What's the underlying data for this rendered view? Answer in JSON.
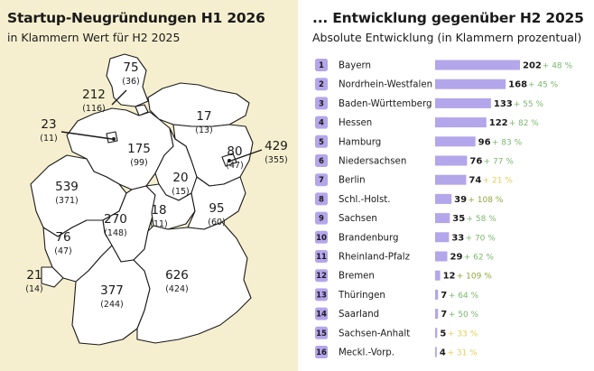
{
  "left": {
    "title": "Startup-Neugründungen H1 2026",
    "subtitle": "in Klammern Wert für H2 2025",
    "background": "#f6efcf"
  },
  "right": {
    "title": "... Entwicklung gegenüber H2 2025",
    "subtitle": "Absolute Entwicklung (in Klammern prozentual)"
  },
  "colors": {
    "bar": "#b3a6ea",
    "badge": "#b3a6ea",
    "pct_high": "#e2d05c",
    "pct_mid": "#7cb86f",
    "pct_low": "#8fa83f"
  },
  "map_labels": [
    {
      "state": "Hamburg",
      "value": "212",
      "prev": "(116)"
    },
    {
      "state": "Schleswig-Holstein",
      "value": "75",
      "prev": "(36)"
    },
    {
      "state": "Bremen",
      "value": "23",
      "prev": "(11)"
    },
    {
      "state": "Mecklenburg-Vorpommern",
      "value": "17",
      "prev": "(13)"
    },
    {
      "state": "Berlin",
      "value": "429",
      "prev": "(355)"
    },
    {
      "state": "Brandenburg",
      "value": "80",
      "prev": "(47)"
    },
    {
      "state": "Niedersachsen",
      "value": "175",
      "prev": "(99)"
    },
    {
      "state": "Nordrhein-Westfalen",
      "value": "539",
      "prev": "(371)"
    },
    {
      "state": "Sachsen-Anhalt",
      "value": "20",
      "prev": "(15)"
    },
    {
      "state": "Sachsen",
      "value": "95",
      "prev": "(60)"
    },
    {
      "state": "Thüringen",
      "value": "18",
      "prev": "(11)"
    },
    {
      "state": "Hessen",
      "value": "270",
      "prev": "(148)"
    },
    {
      "state": "Rheinland-Pfalz",
      "value": "76",
      "prev": "(47)"
    },
    {
      "state": "Saarland",
      "value": "21",
      "prev": "(14)"
    },
    {
      "state": "Baden-Württemberg",
      "value": "377",
      "prev": "(244)"
    },
    {
      "state": "Bayern",
      "value": "626",
      "prev": "(424)"
    }
  ],
  "chart_data": {
    "type": "bar",
    "orientation": "horizontal",
    "categories": [
      "Bayern",
      "Nordrhein-Westfalen",
      "Baden-Württemberg",
      "Hessen",
      "Hamburg",
      "Niedersachsen",
      "Berlin",
      "Schl.-Holst.",
      "Sachsen",
      "Brandenburg",
      "Rheinland-Pfalz",
      "Bremen",
      "Thüringen",
      "Saarland",
      "Sachsen-Anhalt",
      "Meckl.-Vorp."
    ],
    "ranks": [
      "1",
      "2",
      "3",
      "4",
      "5",
      "6",
      "7",
      "8",
      "9",
      "10",
      "11",
      "12",
      "13",
      "14",
      "15",
      "16"
    ],
    "values": [
      202,
      168,
      133,
      122,
      96,
      76,
      74,
      39,
      35,
      33,
      29,
      12,
      7,
      7,
      5,
      4
    ],
    "percent_labels": [
      "+ 48 %",
      "+ 45 %",
      "+ 55 %",
      "+ 82 %",
      "+ 83 %",
      "+ 77 %",
      "+ 21 %",
      "+ 108 %",
      "+ 58 %",
      "+ 70 %",
      "+ 62 %",
      "+ 109 %",
      "+ 64 %",
      "+ 50 %",
      "+ 33 %",
      "+ 31 %"
    ],
    "percent_values": [
      48,
      45,
      55,
      82,
      83,
      77,
      21,
      108,
      58,
      70,
      62,
      109,
      64,
      50,
      33,
      31
    ],
    "title": "... Entwicklung gegenüber H2 2025",
    "subtitle": "Absolute Entwicklung (in Klammern prozentual)",
    "xlim": [
      0,
      202
    ]
  }
}
